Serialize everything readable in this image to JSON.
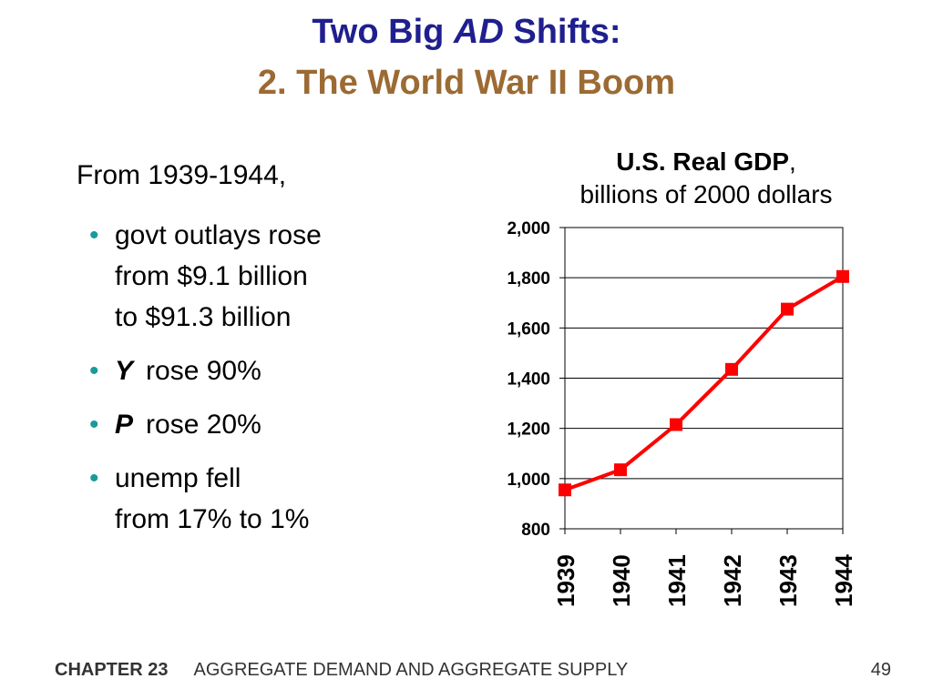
{
  "slide": {
    "title_line1_pre": "Two Big ",
    "title_line1_italic": "AD",
    "title_line1_post": " Shifts:",
    "title_line2": "2.  The World War II Boom"
  },
  "content": {
    "intro": "From 1939-1944,",
    "bullets": [
      {
        "lines": [
          "govt outlays rose",
          "from $9.1 billion",
          "to $91.3 billion"
        ]
      },
      {
        "var": "Y",
        "text": "rose 90%"
      },
      {
        "var": "P",
        "text": "rose 20%"
      },
      {
        "lines": [
          "unemp fell",
          "from 17% to 1%"
        ]
      }
    ]
  },
  "chart_title": {
    "bold": "U.S. Real GDP",
    "comma": ",",
    "subtitle": "billions of 2000 dollars"
  },
  "chart_data": {
    "type": "line",
    "title": "U.S. Real GDP, billions of 2000 dollars",
    "x": [
      "1939",
      "1940",
      "1941",
      "1942",
      "1943",
      "1944"
    ],
    "series": [
      {
        "values": [
          955,
          1035,
          1215,
          1435,
          1675,
          1805
        ]
      }
    ],
    "ylim": [
      800,
      2000
    ],
    "yticks": [
      "800",
      "1,000",
      "1,200",
      "1,400",
      "1,600",
      "1,800",
      "2,000"
    ],
    "grid": true,
    "color": "#ff0000"
  },
  "footer": {
    "chapter": "CHAPTER 23",
    "text": "AGGREGATE DEMAND AND AGGREGATE SUPPLY",
    "page": "49"
  }
}
